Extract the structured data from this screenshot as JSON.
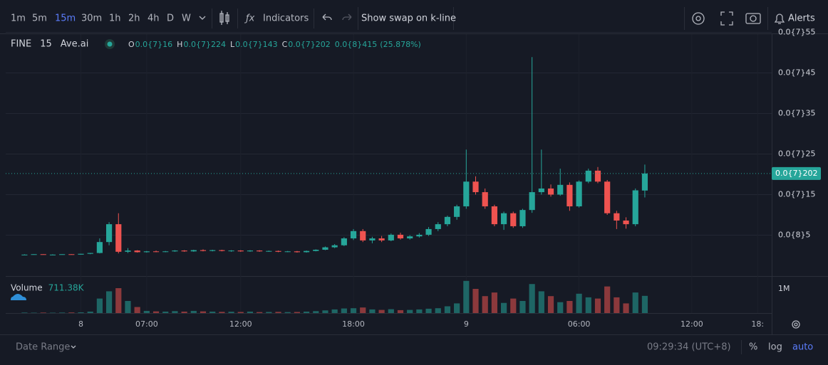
{
  "toolbar": {
    "intervals": [
      "1m",
      "5m",
      "15m",
      "30m",
      "1h",
      "2h",
      "4h",
      "D",
      "W"
    ],
    "active_interval": 2,
    "indicators": "Indicators",
    "swap": "Show swap on k-line",
    "alerts": "Alerts"
  },
  "footer": {
    "date_range": "Date Range",
    "clock": "09:29:34 (UTC+8)",
    "percent": "%",
    "log": "log",
    "auto": "auto"
  },
  "chart_data": {
    "type": "candlestick",
    "symbol": "FINE",
    "interval": "15",
    "source": "Ave.ai",
    "ohlc_legend": [
      {
        "key": "O",
        "label": "0.0{7}16"
      },
      {
        "key": "H",
        "label": "0.0{7}224"
      },
      {
        "key": "L",
        "label": "0.0{7}143"
      },
      {
        "key": "C",
        "label": "0.0{7}202"
      }
    ],
    "change_label": "0.0{8}415",
    "change_pct_label": "(25.878%)",
    "last_price_label": "0.0{7}202",
    "up_color": "#26a69a",
    "down_color": "#ef5350",
    "xlim": [
      -2,
      79.5
    ],
    "xticks": [
      {
        "value": 6,
        "label": "8"
      },
      {
        "value": 13,
        "label": "07:00"
      },
      {
        "value": 23,
        "label": "12:00"
      },
      {
        "value": 35,
        "label": "18:00"
      },
      {
        "value": 47,
        "label": "9"
      },
      {
        "value": 59,
        "label": "06:00"
      },
      {
        "value": 71,
        "label": "12:00"
      },
      {
        "value": 78,
        "label": "18:"
      }
    ],
    "ylim": [
      -5.09e-09,
      5.509e-08
    ],
    "yticks": [
      {
        "value": 5e-09,
        "label": "0.0{8}5"
      },
      {
        "value": 1.5e-08,
        "label": "0.0{7}15"
      },
      {
        "value": 2.5e-08,
        "label": "0.0{7}25"
      },
      {
        "value": 3.5e-08,
        "label": "0.0{7}35"
      },
      {
        "value": 4.5e-08,
        "label": "0.0{7}45"
      },
      {
        "value": 5.5e-08,
        "label": "0.0{7}55"
      }
    ],
    "grid": true,
    "ohlc": {
      "open": [
        2e-10,
        2e-10,
        3e-10,
        2e-10,
        2e-10,
        3e-10,
        2e-10,
        4e-10,
        6e-10,
        3.3e-09,
        7.7e-09,
        9e-10,
        1.2e-09,
        8e-10,
        1e-09,
        9e-10,
        1e-09,
        1.2e-09,
        1e-09,
        1.3e-09,
        1.1e-09,
        1.3e-09,
        1.1e-09,
        1.2e-09,
        1e-09,
        1.2e-09,
        1e-09,
        1.1e-09,
        9e-10,
        1e-09,
        8e-10,
        1.1e-09,
        1.4e-09,
        2e-09,
        2.5e-09,
        4.2e-09,
        6e-09,
        3.7e-09,
        4.2e-09,
        3.7e-09,
        5.1e-09,
        4.2e-09,
        4.7e-09,
        5.1e-09,
        6.5e-09,
        7.7e-09,
        9.5e-09,
        1.21e-08,
        1.82e-08,
        1.56e-08,
        1.21e-08,
        7.7e-09,
        1.04e-08,
        7.2e-09,
        1.12e-08,
        1.56e-08,
        1.65e-08,
        1.5e-08,
        1.74e-08,
        1.21e-08,
        1.82e-08,
        2.09e-08,
        1.82e-08,
        1.04e-08,
        8.6e-09,
        7.7e-09,
        1.6e-08
      ],
      "high": [
        3e-10,
        3e-10,
        3e-10,
        3e-10,
        3e-10,
        3e-10,
        4e-10,
        6e-10,
        4.2e-09,
        8.2e-09,
        1.04e-08,
        1.8e-09,
        1.3e-09,
        1.1e-09,
        1.2e-09,
        1.1e-09,
        1.3e-09,
        1.3e-09,
        1.4e-09,
        1.5e-09,
        1.4e-09,
        1.4e-09,
        1.3e-09,
        1.3e-09,
        1.3e-09,
        1.3e-09,
        1.2e-09,
        1.2e-09,
        1.1e-09,
        1.1e-09,
        1.2e-09,
        1.5e-09,
        2.2e-09,
        2.8e-09,
        4.5e-09,
        6.5e-09,
        6.5e-09,
        4.6e-09,
        4.8e-09,
        5.4e-09,
        5.6e-09,
        5e-09,
        5.5e-09,
        7e-09,
        8.2e-09,
        9.8e-09,
        1.25e-08,
        2.61e-08,
        1.95e-08,
        1.65e-08,
        1.25e-08,
        1.08e-08,
        1.08e-08,
        1.15e-08,
        4.89e-08,
        2.61e-08,
        1.75e-08,
        2.14e-08,
        1.8e-08,
        1.85e-08,
        2.14e-08,
        2.18e-08,
        1.86e-08,
        1.1e-08,
        9.4e-09,
        1.65e-08,
        2.24e-08
      ],
      "low": [
        2e-10,
        2e-10,
        2e-10,
        2e-10,
        2e-10,
        2e-10,
        2e-10,
        3e-10,
        5e-10,
        2.5e-09,
        5e-10,
        6e-10,
        7e-10,
        7e-10,
        8e-10,
        8e-10,
        9e-10,
        9e-10,
        9e-10,
        1e-09,
        1e-09,
        1e-09,
        9e-10,
        9e-10,
        9e-10,
        9e-10,
        9e-10,
        8e-10,
        8e-10,
        7e-10,
        7e-10,
        1e-09,
        1.3e-09,
        1.8e-09,
        2.3e-09,
        3.8e-09,
        3.3e-09,
        3e-09,
        3.3e-09,
        3.5e-09,
        3.9e-09,
        3.9e-09,
        4.4e-09,
        4.8e-09,
        6e-09,
        7.2e-09,
        8.8e-09,
        1.15e-08,
        1.5e-08,
        1.15e-08,
        7.2e-09,
        6.3e-09,
        6.8e-09,
        6.8e-09,
        1.05e-08,
        1.5e-08,
        1.45e-08,
        1.47e-08,
        1.1e-08,
        1.18e-08,
        1.78e-08,
        1.78e-08,
        1e-08,
        6.5e-09,
        6.6e-09,
        7.2e-09,
        1.43e-08
      ],
      "close": [
        2e-10,
        3e-10,
        2e-10,
        2e-10,
        3e-10,
        2e-10,
        4e-10,
        6e-10,
        3.3e-09,
        7.7e-09,
        9e-10,
        1.2e-09,
        8e-10,
        1e-09,
        9e-10,
        1e-09,
        1.2e-09,
        1e-09,
        1.3e-09,
        1.1e-09,
        1.3e-09,
        1.1e-09,
        1.2e-09,
        1e-09,
        1.2e-09,
        1e-09,
        1.1e-09,
        9e-10,
        1e-09,
        8e-10,
        1.1e-09,
        1.4e-09,
        2e-09,
        2.5e-09,
        4.2e-09,
        6e-09,
        3.7e-09,
        4.2e-09,
        3.7e-09,
        5.1e-09,
        4.2e-09,
        4.7e-09,
        5.1e-09,
        6.5e-09,
        7.7e-09,
        9.5e-09,
        1.21e-08,
        1.82e-08,
        1.56e-08,
        1.21e-08,
        7.7e-09,
        1.04e-08,
        7.2e-09,
        1.12e-08,
        1.56e-08,
        1.65e-08,
        1.5e-08,
        1.74e-08,
        1.21e-08,
        1.82e-08,
        2.09e-08,
        1.82e-08,
        1.04e-08,
        8.6e-09,
        7.7e-09,
        1.605e-08,
        2.02e-08
      ]
    },
    "volume": {
      "name": "Volume",
      "last_label": "711.38K",
      "ylim": [
        0,
        1530000
      ],
      "yticks": [
        {
          "value": 1000000,
          "label": "1M"
        }
      ],
      "values": [
        20000,
        15000,
        20000,
        15000,
        20000,
        25000,
        30000,
        60000,
        600000,
        900000,
        1030000,
        500000,
        250000,
        90000,
        70000,
        60000,
        80000,
        60000,
        90000,
        70000,
        60000,
        50000,
        55000,
        45000,
        60000,
        40000,
        45000,
        50000,
        40000,
        45000,
        60000,
        80000,
        110000,
        150000,
        190000,
        200000,
        230000,
        150000,
        130000,
        160000,
        120000,
        130000,
        150000,
        180000,
        200000,
        280000,
        400000,
        1330000,
        1000000,
        700000,
        850000,
        420000,
        600000,
        500000,
        1200000,
        900000,
        700000,
        450000,
        500000,
        800000,
        650000,
        600000,
        1100000,
        650000,
        400000,
        850000,
        711380
      ]
    }
  }
}
